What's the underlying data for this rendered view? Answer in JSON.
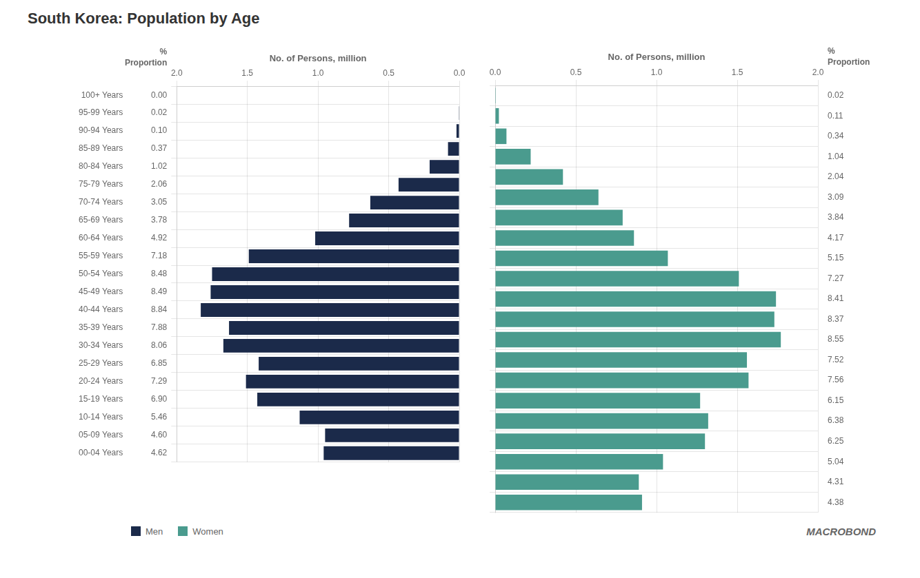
{
  "chart_data": {
    "type": "bar",
    "orientation": "horizontal",
    "title": "South Korea: Population by Age",
    "categories": [
      "00-04 Years",
      "05-09 Years",
      "10-14 Years",
      "15-19 Years",
      "20-24 Years",
      "25-29 Years",
      "30-34 Years",
      "35-39 Years",
      "40-44 Years",
      "45-49 Years",
      "50-54 Years",
      "55-59 Years",
      "60-64 Years",
      "65-69 Years",
      "70-74 Years",
      "75-79 Years",
      "80-84 Years",
      "85-89 Years",
      "90-94 Years",
      "95-99 Years",
      "100+ Years"
    ],
    "series": [
      {
        "name": "Men",
        "color": "#1B2A4A",
        "values": [
          0.96,
          0.95,
          1.13,
          1.43,
          1.51,
          1.42,
          1.67,
          1.63,
          1.83,
          1.76,
          1.75,
          1.49,
          1.02,
          0.78,
          0.63,
          0.43,
          0.21,
          0.08,
          0.02,
          0.004,
          0.0
        ],
        "pct": [
          4.62,
          4.6,
          5.46,
          6.9,
          7.29,
          6.85,
          8.06,
          7.88,
          8.84,
          8.49,
          8.48,
          7.18,
          4.92,
          3.78,
          3.05,
          2.06,
          1.02,
          0.37,
          0.1,
          0.02,
          0.0
        ],
        "pct_labels": [
          "4.62",
          "4.60",
          "5.46",
          "6.90",
          "7.29",
          "6.85",
          "8.06",
          "7.88",
          "8.84",
          "8.49",
          "8.48",
          "7.18",
          "4.92",
          "3.78",
          "3.05",
          "2.06",
          "1.02",
          "0.37",
          "0.10",
          "0.02",
          "0.00"
        ]
      },
      {
        "name": "Women",
        "color": "#4A9B8E",
        "values": [
          0.91,
          0.89,
          1.04,
          1.3,
          1.32,
          1.27,
          1.57,
          1.56,
          1.77,
          1.73,
          1.74,
          1.51,
          1.07,
          0.86,
          0.79,
          0.64,
          0.42,
          0.22,
          0.07,
          0.023,
          0.004
        ],
        "pct": [
          4.38,
          4.31,
          5.04,
          6.25,
          6.38,
          6.15,
          7.56,
          7.52,
          8.55,
          8.37,
          8.41,
          7.27,
          5.15,
          4.17,
          3.84,
          3.09,
          2.04,
          1.04,
          0.34,
          0.11,
          0.02
        ],
        "pct_labels": [
          "4.38",
          "4.31",
          "5.04",
          "6.25",
          "6.38",
          "6.15",
          "7.56",
          "7.52",
          "8.55",
          "8.37",
          "8.41",
          "7.27",
          "5.15",
          "4.17",
          "3.84",
          "3.09",
          "2.04",
          "1.04",
          "0.34",
          "0.11",
          "0.02"
        ]
      }
    ],
    "xlabel": "No. of Persons, million",
    "xlim": [
      0,
      2.0
    ],
    "xticks": [
      {
        "value": 0,
        "label": "0.0"
      },
      0.5,
      {
        "value": 1.0,
        "label": "1.0"
      },
      1.5,
      {
        "value": 2.0,
        "label": "2.0"
      }
    ],
    "pct_header": [
      "%",
      "Proportion"
    ],
    "grid": true,
    "legend": "bottom",
    "annotations": [
      "MACROBOND"
    ]
  }
}
